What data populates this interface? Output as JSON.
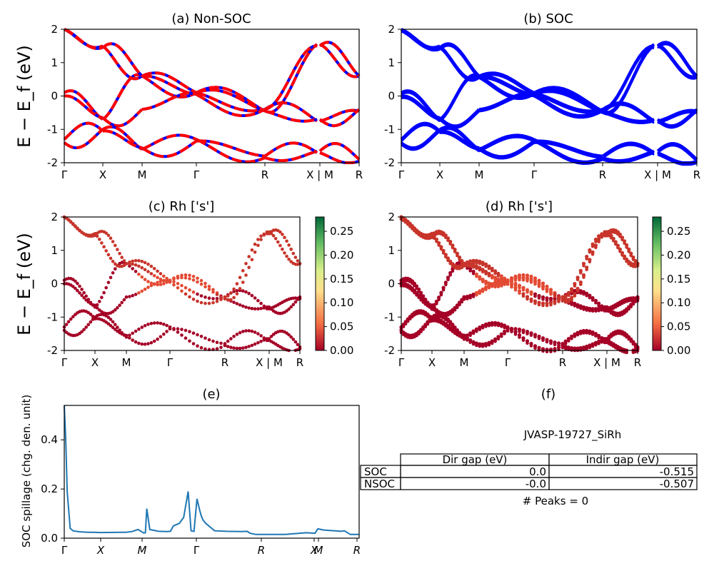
{
  "chart_data": [
    {
      "panel": "(a)",
      "type": "line",
      "title": "(a) Non-SOC",
      "ylabel": "E − E_f (eV)",
      "ylim": [
        -2,
        2
      ],
      "yticks": [
        -2,
        -1,
        0,
        1,
        2
      ],
      "kpath_labels": [
        "Γ",
        "X",
        "M",
        "Γ",
        "R",
        "X | M",
        "R"
      ],
      "series": [
        {
          "color": "#0000ff",
          "style": "solid"
        },
        {
          "color": "#ff0000",
          "style": "dashed"
        }
      ],
      "bands_values_eV_at_labels": [
        [
          0.1,
          -0.7,
          0.6,
          0.1,
          -0.4,
          -0.75,
          -0.45
        ],
        [
          0.0,
          -0.65,
          -0.4,
          0.1,
          -0.45,
          -0.7,
          -0.4
        ],
        [
          -1.4,
          -1.0,
          -1.6,
          -1.3,
          -1.85,
          -1.65,
          -1.9
        ],
        [
          -1.3,
          -1.05,
          -1.55,
          -1.35,
          -1.8,
          -1.7,
          -1.95
        ],
        [
          2.0,
          1.5,
          0.6,
          0.1,
          -0.45,
          1.55,
          0.6
        ],
        [
          2.0,
          1.45,
          0.6,
          0.05,
          -0.4,
          1.5,
          0.6
        ]
      ]
    },
    {
      "panel": "(b)",
      "type": "line",
      "title": "(b) SOC",
      "ylim": [
        -2,
        2
      ],
      "yticks": [
        -2,
        -1,
        0,
        1,
        2
      ],
      "kpath_labels": [
        "Γ",
        "X",
        "M",
        "Γ",
        "R",
        "X | M",
        "R"
      ],
      "series": [
        {
          "color": "#0000ff",
          "style": "solid"
        }
      ],
      "bands_values_eV_at_labels": [
        [
          0.1,
          -0.7,
          0.6,
          0.1,
          -0.4,
          -0.75,
          -0.45
        ],
        [
          0.0,
          -0.65,
          -0.4,
          0.1,
          -0.45,
          -0.7,
          -0.4
        ],
        [
          -1.4,
          -1.0,
          -1.6,
          -1.3,
          -1.85,
          -1.65,
          -1.9
        ],
        [
          -1.3,
          -1.05,
          -1.55,
          -1.35,
          -1.8,
          -1.7,
          -1.95
        ],
        [
          2.0,
          1.5,
          0.6,
          0.1,
          -0.45,
          1.55,
          0.6
        ],
        [
          2.0,
          1.45,
          0.6,
          0.05,
          -0.4,
          1.5,
          0.6
        ]
      ]
    },
    {
      "panel": "(c)",
      "type": "scatter",
      "title": "(c)  Rh ['s']",
      "ylabel": "E − E_f (eV)",
      "ylim": [
        -2,
        2
      ],
      "yticks": [
        -2,
        -1,
        0,
        1,
        2
      ],
      "kpath_labels": [
        "Γ",
        "X",
        "M",
        "Γ",
        "R",
        "X | M",
        "R"
      ],
      "colorbar": {
        "ticks": [
          "0.00",
          "0.05",
          "0.10",
          "0.15",
          "0.20",
          "0.25"
        ],
        "min": 0.0,
        "max": 0.28,
        "colors": [
          "#a50026",
          "#f46d43",
          "#fee08b",
          "#d9ef8b",
          "#66bd63",
          "#006837"
        ]
      }
    },
    {
      "panel": "(d)",
      "type": "scatter",
      "title": "(d) Rh ['s']",
      "ylim": [
        -2,
        2
      ],
      "yticks": [
        -2,
        -1,
        0,
        1,
        2
      ],
      "kpath_labels": [
        "Γ",
        "X",
        "M",
        "Γ",
        "R",
        "X | M",
        "R"
      ],
      "colorbar": {
        "ticks": [
          "0.00",
          "0.05",
          "0.10",
          "0.15",
          "0.20",
          "0.25"
        ],
        "min": 0.0,
        "max": 0.28,
        "colors": [
          "#a50026",
          "#f46d43",
          "#fee08b",
          "#d9ef8b",
          "#66bd63",
          "#006837"
        ]
      }
    },
    {
      "panel": "(e)",
      "type": "line",
      "title": "(e)",
      "ylabel": "SOC spillage (chg. den. unit)",
      "ylim": [
        0,
        0.54
      ],
      "yticks": [
        "0.0",
        "0.2",
        "0.4"
      ],
      "kpath_labels": [
        "Γ",
        "X",
        "M",
        "Γ",
        "R",
        "X",
        "M",
        "R"
      ],
      "series": [
        {
          "color": "#1f77b4"
        }
      ],
      "x": [
        0,
        0.5,
        1,
        2,
        3,
        5,
        8,
        10,
        12,
        20,
        21,
        23,
        25,
        27,
        27.5,
        28,
        29,
        32,
        35,
        36,
        37,
        39,
        40.5,
        42,
        43,
        44,
        45,
        46,
        46.5,
        47,
        48,
        49,
        51,
        55,
        60,
        62,
        63,
        65,
        66,
        67,
        70,
        75,
        82,
        85,
        86,
        88,
        94,
        95,
        97,
        100
      ],
      "values": [
        0.55,
        0.4,
        0.19,
        0.04,
        0.03,
        0.026,
        0.024,
        0.024,
        0.023,
        0.024,
        0.024,
        0.027,
        0.035,
        0.021,
        0.022,
        0.12,
        0.035,
        0.028,
        0.027,
        0.028,
        0.05,
        0.06,
        0.085,
        0.19,
        0.03,
        0.028,
        0.16,
        0.11,
        0.09,
        0.075,
        0.06,
        0.05,
        0.03,
        0.028,
        0.027,
        0.028,
        0.02,
        0.015,
        0.015,
        0.015,
        0.015,
        0.015,
        0.022,
        0.02,
        0.038,
        0.033,
        0.028,
        0.03,
        0.015,
        0.015
      ]
    },
    {
      "panel": "(f)",
      "type": "table",
      "title": "(f)",
      "subtitle": "JVASP-19727_SiRh",
      "columns": [
        "Dir gap (eV)",
        "Indir gap (eV)"
      ],
      "rows": [
        {
          "label": "SOC",
          "values": [
            "0.0",
            "-0.515"
          ]
        },
        {
          "label": "NSOC",
          "values": [
            "-0.0",
            "-0.507"
          ]
        }
      ],
      "footer": "# Peaks = 0"
    }
  ]
}
